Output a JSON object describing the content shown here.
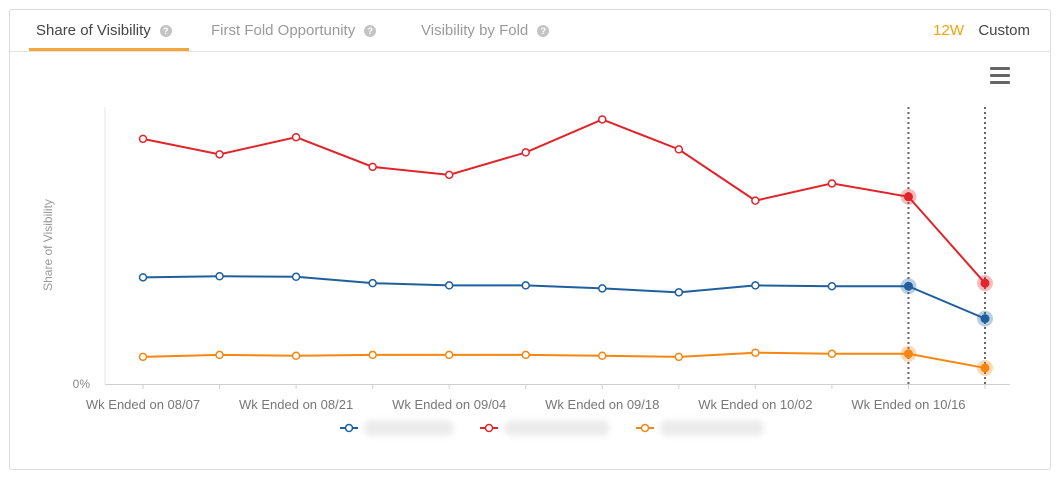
{
  "tabs": [
    {
      "label": "Share of Visibility",
      "active": true
    },
    {
      "label": "First Fold Opportunity",
      "active": false
    },
    {
      "label": "Visibility by Fold",
      "active": false
    }
  ],
  "ranges": {
    "w12": "12W",
    "custom": "Custom"
  },
  "colors": {
    "accent": "#f3a10a",
    "blue": "#1f5f9e",
    "red": "#e0242a",
    "orange": "#f6860f"
  },
  "chart_data": {
    "type": "line",
    "ylabel": "Share of Visibility",
    "y_tick_label": "0%",
    "x_labels": [
      "Wk Ended on 08/07",
      "",
      "Wk Ended on 08/21",
      "",
      "Wk Ended on 09/04",
      "",
      "Wk Ended on 09/18",
      "",
      "Wk Ended on 10/02",
      "",
      "Wk Ended on 10/16",
      ""
    ],
    "x_label_values": [
      "Wk Ended on 08/07",
      "Wk Ended on 08/21",
      "Wk Ended on 09/04",
      "Wk Ended on 09/18",
      "Wk Ended on 10/02",
      "Wk Ended on 10/16"
    ],
    "ylim": [
      0,
      100
    ],
    "grid": false,
    "legend_position": "bottom-center",
    "highlighted_points": [
      10,
      11
    ],
    "series": [
      {
        "color": "#e0242a",
        "values": [
          88.5,
          82.9,
          89.1,
          78.4,
          75.5,
          83.6,
          95.5,
          84.7,
          66.2,
          72.4,
          67.6,
          36.4
        ]
      },
      {
        "color": "#1f5f9e",
        "values": [
          38.5,
          38.9,
          38.7,
          36.4,
          35.6,
          35.6,
          34.5,
          33.1,
          35.6,
          35.3,
          35.3,
          23.6
        ]
      },
      {
        "color": "#f6860f",
        "values": [
          9.8,
          10.5,
          10.2,
          10.5,
          10.5,
          10.5,
          10.2,
          9.8,
          11.3,
          10.9,
          10.9,
          5.8
        ]
      }
    ]
  }
}
